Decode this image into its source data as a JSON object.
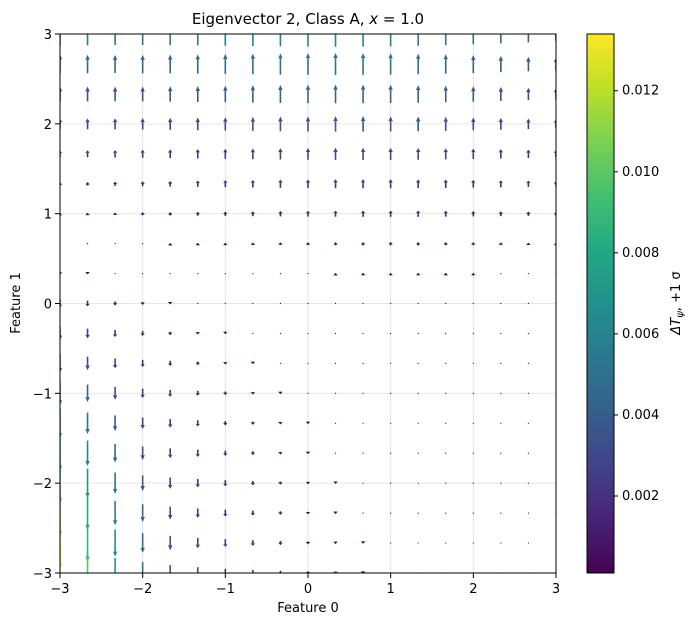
{
  "chart_data": {
    "type": "quiver",
    "title": "Eigenvector 2,  Class A, x = 1.0",
    "title_parts": {
      "prefix": "Eigenvector 2,  Class A, ",
      "var": "x",
      "suffix": " = 1.0"
    },
    "xlabel": "Feature 0",
    "ylabel": "Feature 1",
    "xlim": [
      -3,
      3
    ],
    "ylim": [
      -3,
      3
    ],
    "xticks": [
      -3,
      -2,
      -1,
      0,
      1,
      2,
      3
    ],
    "yticks": [
      -3,
      -2,
      -1,
      0,
      1,
      2,
      3
    ],
    "xtick_labels": [
      "−3",
      "−2",
      "−1",
      "0",
      "1",
      "2",
      "3"
    ],
    "ytick_labels": [
      "−3",
      "−2",
      "−1",
      "0",
      "1",
      "2",
      "3"
    ],
    "grid": true,
    "colormap": "viridis",
    "colorbar": {
      "label": "ΔT_ψ, +1 σ",
      "label_parts": {
        "main": "ΔT",
        "sub": "ψ",
        "rest": ", +1 σ"
      },
      "range": [
        0.0001,
        0.0134
      ],
      "ticks": [
        0.002,
        0.004,
        0.006,
        0.008,
        0.01,
        0.012
      ],
      "tick_labels": [
        "0.002",
        "0.004",
        "0.006",
        "0.008",
        "0.010",
        "0.012"
      ]
    },
    "grid_points": {
      "n": 19,
      "start": -3,
      "step": 0.3333
    },
    "vector_field": {
      "component": "vertical",
      "model": "v = 0.0045 * exp(-(x+3)*0.8) * (y0 - y) * 1.2 + 0.0025 * (y - 0.6) / 2.4 * exp(-((x-0.7)^2)/8)",
      "note": "downward arrows at left-low region, upward arrows at top region, near-zero around y≈0.6"
    }
  }
}
